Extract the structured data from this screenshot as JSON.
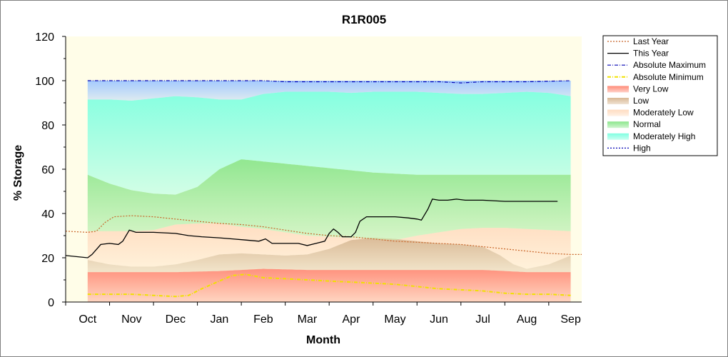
{
  "chart_data": {
    "type": "area",
    "title": "R1R005",
    "xlabel": "Month",
    "ylabel": "% Storage",
    "ylim": [
      0,
      120
    ],
    "yticks": [
      0,
      20,
      40,
      60,
      80,
      100,
      120
    ],
    "xlim": [
      -0.5,
      11.25
    ],
    "categories": [
      "Oct",
      "Nov",
      "Dec",
      "Jan",
      "Feb",
      "Mar",
      "Apr",
      "May",
      "Jun",
      "Jul",
      "Aug",
      "Sep"
    ],
    "legend_position": "right",
    "bands": [
      {
        "name": "Very Low",
        "color": "#ff8c78",
        "points": [
          [
            0,
            0
          ],
          [
            11,
            0
          ]
        ],
        "upper": [
          [
            0,
            13.5
          ],
          [
            1,
            13.5
          ],
          [
            2,
            13.5
          ],
          [
            3,
            14
          ],
          [
            4,
            15
          ],
          [
            5,
            14.5
          ],
          [
            6,
            14.5
          ],
          [
            7,
            14.5
          ],
          [
            8,
            14.5
          ],
          [
            9,
            14.5
          ],
          [
            10,
            13.5
          ],
          [
            11,
            13.5
          ]
        ]
      },
      {
        "name": "Low",
        "color": "#d9b894",
        "upper": [
          [
            0,
            19
          ],
          [
            0.5,
            17
          ],
          [
            1,
            16
          ],
          [
            1.5,
            16
          ],
          [
            2,
            17
          ],
          [
            2.5,
            19
          ],
          [
            3,
            21.5
          ],
          [
            3.5,
            22
          ],
          [
            4,
            21.5
          ],
          [
            4.5,
            21
          ],
          [
            5,
            21.5
          ],
          [
            5.5,
            24
          ],
          [
            6,
            28
          ],
          [
            6.5,
            29
          ],
          [
            7,
            28.5
          ],
          [
            7.5,
            27.5
          ],
          [
            8,
            26.5
          ],
          [
            8.5,
            26
          ],
          [
            9,
            25
          ],
          [
            9.4,
            21
          ],
          [
            9.7,
            17
          ],
          [
            10,
            15
          ],
          [
            10.5,
            17
          ],
          [
            11,
            21
          ]
        ]
      },
      {
        "name": "Moderately Low",
        "color": "#ffdcc0",
        "upper": [
          [
            0,
            32
          ],
          [
            0.5,
            32
          ],
          [
            1,
            32
          ],
          [
            1.5,
            32.5
          ],
          [
            2,
            35
          ],
          [
            2.5,
            35.5
          ],
          [
            3,
            35.5
          ],
          [
            3.5,
            34
          ],
          [
            4,
            33
          ],
          [
            4.5,
            31.5
          ],
          [
            5,
            30
          ],
          [
            5.5,
            29.5
          ],
          [
            6,
            29
          ],
          [
            6.5,
            28.5
          ],
          [
            7,
            28
          ],
          [
            7.5,
            30
          ],
          [
            8,
            31.5
          ],
          [
            8.5,
            33
          ],
          [
            9,
            33.5
          ],
          [
            9.5,
            33.5
          ],
          [
            10,
            33
          ],
          [
            10.5,
            32.5
          ],
          [
            11,
            32
          ]
        ]
      },
      {
        "name": "Normal",
        "color": "#8ce68c",
        "upper": [
          [
            0,
            57.5
          ],
          [
            0.5,
            53.5
          ],
          [
            1,
            50.5
          ],
          [
            1.5,
            49
          ],
          [
            2,
            48.5
          ],
          [
            2.5,
            52
          ],
          [
            3,
            60
          ],
          [
            3.5,
            64.5
          ],
          [
            4,
            63.5
          ],
          [
            4.5,
            62.5
          ],
          [
            5,
            61.5
          ],
          [
            5.5,
            60.5
          ],
          [
            6,
            59.5
          ],
          [
            6.5,
            58.5
          ],
          [
            7,
            58
          ],
          [
            7.5,
            57.5
          ],
          [
            8,
            57.5
          ],
          [
            9,
            57.5
          ],
          [
            10,
            57.5
          ],
          [
            11,
            57.5
          ]
        ]
      },
      {
        "name": "Moderately High",
        "color": "#7fffe0",
        "upper": [
          [
            0,
            91.5
          ],
          [
            0.5,
            91.5
          ],
          [
            1,
            91
          ],
          [
            1.5,
            92
          ],
          [
            2,
            93
          ],
          [
            2.5,
            92.5
          ],
          [
            3,
            91.5
          ],
          [
            3.5,
            91.5
          ],
          [
            4,
            94
          ],
          [
            4.5,
            95
          ],
          [
            5,
            95
          ],
          [
            5.5,
            95
          ],
          [
            6,
            94.5
          ],
          [
            6.5,
            95
          ],
          [
            7,
            95
          ],
          [
            7.5,
            95
          ],
          [
            8,
            94.5
          ],
          [
            8.5,
            94
          ],
          [
            9,
            94
          ],
          [
            9.5,
            94.5
          ],
          [
            10,
            95
          ],
          [
            10.5,
            94.5
          ],
          [
            11,
            93
          ]
        ]
      },
      {
        "name": "High",
        "color": "#a0c8ff",
        "upper": [
          [
            0,
            100
          ],
          [
            11,
            100
          ]
        ]
      }
    ],
    "series": [
      {
        "name": "Last Year",
        "color": "#c86428",
        "style": "dotted",
        "points": [
          [
            -0.5,
            32
          ],
          [
            0,
            31.5
          ],
          [
            0.2,
            32
          ],
          [
            0.4,
            36
          ],
          [
            0.6,
            38.5
          ],
          [
            1,
            39
          ],
          [
            1.5,
            38.5
          ],
          [
            2,
            37.5
          ],
          [
            2.5,
            36.5
          ],
          [
            3,
            35.5
          ],
          [
            3.5,
            35
          ],
          [
            4,
            34
          ],
          [
            4.5,
            32.5
          ],
          [
            5,
            31
          ],
          [
            5.5,
            30
          ],
          [
            6,
            29.5
          ],
          [
            6.5,
            28.5
          ],
          [
            7,
            27.5
          ],
          [
            7.5,
            27
          ],
          [
            8,
            26.5
          ],
          [
            8.5,
            26
          ],
          [
            9,
            25
          ],
          [
            9.5,
            24
          ],
          [
            10,
            23
          ],
          [
            10.5,
            22
          ],
          [
            11,
            21.5
          ],
          [
            11.25,
            21.5
          ]
        ]
      },
      {
        "name": "This Year",
        "color": "#000000",
        "style": "solid",
        "points": [
          [
            -0.5,
            21
          ],
          [
            0,
            20
          ],
          [
            0.1,
            21.5
          ],
          [
            0.3,
            26
          ],
          [
            0.5,
            26.5
          ],
          [
            0.7,
            26
          ],
          [
            0.8,
            27.5
          ],
          [
            0.95,
            32.5
          ],
          [
            1.1,
            31.5
          ],
          [
            1.3,
            31.5
          ],
          [
            1.5,
            31.5
          ],
          [
            2,
            31
          ],
          [
            2.3,
            30
          ],
          [
            2.6,
            29.5
          ],
          [
            3,
            29
          ],
          [
            3.3,
            28.5
          ],
          [
            3.6,
            28
          ],
          [
            3.9,
            27.5
          ],
          [
            4.05,
            28.5
          ],
          [
            4.2,
            26.5
          ],
          [
            4.5,
            26.5
          ],
          [
            4.8,
            26.5
          ],
          [
            5,
            25.5
          ],
          [
            5.2,
            26.5
          ],
          [
            5.4,
            27.5
          ],
          [
            5.5,
            31
          ],
          [
            5.6,
            33
          ],
          [
            5.7,
            31.5
          ],
          [
            5.8,
            29.5
          ],
          [
            6,
            29.5
          ],
          [
            6.1,
            31.5
          ],
          [
            6.2,
            36.5
          ],
          [
            6.35,
            38.5
          ],
          [
            6.6,
            38.5
          ],
          [
            7,
            38.5
          ],
          [
            7.3,
            38
          ],
          [
            7.5,
            37.5
          ],
          [
            7.6,
            37
          ],
          [
            7.75,
            42
          ],
          [
            7.85,
            46.5
          ],
          [
            8,
            46
          ],
          [
            8.2,
            46
          ],
          [
            8.4,
            46.5
          ],
          [
            8.6,
            46
          ],
          [
            9,
            46
          ],
          [
            9.5,
            45.5
          ],
          [
            9.8,
            45.5
          ],
          [
            10,
            45.5
          ],
          [
            10.4,
            45.5
          ],
          [
            10.7,
            45.5
          ]
        ]
      },
      {
        "name": "Absolute Maximum",
        "color": "#0000b4",
        "style": "dashdot",
        "points": [
          [
            0,
            100
          ],
          [
            4,
            100
          ],
          [
            4.5,
            99.5
          ],
          [
            7,
            99.5
          ],
          [
            8,
            99.5
          ],
          [
            8.5,
            99
          ],
          [
            9,
            99.5
          ],
          [
            9.5,
            99.5
          ],
          [
            10,
            99.5
          ],
          [
            11,
            100
          ]
        ]
      },
      {
        "name": "Absolute Minimum",
        "color": "#f0e100",
        "style": "dashdot",
        "points": [
          [
            0,
            3.5
          ],
          [
            0.5,
            3.5
          ],
          [
            1,
            3.5
          ],
          [
            1.5,
            3
          ],
          [
            2,
            2.5
          ],
          [
            2.3,
            3
          ],
          [
            2.6,
            6
          ],
          [
            3,
            9.5
          ],
          [
            3.3,
            12
          ],
          [
            3.6,
            12.5
          ],
          [
            4,
            11
          ],
          [
            4.5,
            10.5
          ],
          [
            5,
            10
          ],
          [
            5.5,
            9.5
          ],
          [
            6,
            9
          ],
          [
            6.5,
            8.5
          ],
          [
            7,
            8
          ],
          [
            7.5,
            7
          ],
          [
            8,
            6
          ],
          [
            8.5,
            5.5
          ],
          [
            9,
            5
          ],
          [
            9.5,
            4
          ],
          [
            10,
            3.5
          ],
          [
            10.5,
            3.5
          ],
          [
            11,
            3
          ]
        ]
      }
    ],
    "legend": [
      {
        "label": "Last Year",
        "kind": "line",
        "color": "#c86428",
        "style": "dotted"
      },
      {
        "label": "This Year",
        "kind": "line",
        "color": "#000000",
        "style": "solid"
      },
      {
        "label": "Absolute Maximum",
        "kind": "line",
        "color": "#0000b4",
        "style": "dashdot"
      },
      {
        "label": "Absolute Minimum",
        "kind": "line",
        "color": "#f0e100",
        "style": "dashdot"
      },
      {
        "label": "Very Low",
        "kind": "band",
        "color": "#ff8c78"
      },
      {
        "label": "Low",
        "kind": "band",
        "color": "#d9b894"
      },
      {
        "label": "Moderately Low",
        "kind": "band",
        "color": "#ffdcc0"
      },
      {
        "label": "Normal",
        "kind": "band",
        "color": "#8ce68c"
      },
      {
        "label": "Moderately High",
        "kind": "band",
        "color": "#7fffe0"
      },
      {
        "label": "High",
        "kind": "line",
        "color": "#0000b4",
        "style": "dotted"
      }
    ],
    "plot_background": "#fffde8",
    "grid": false
  }
}
